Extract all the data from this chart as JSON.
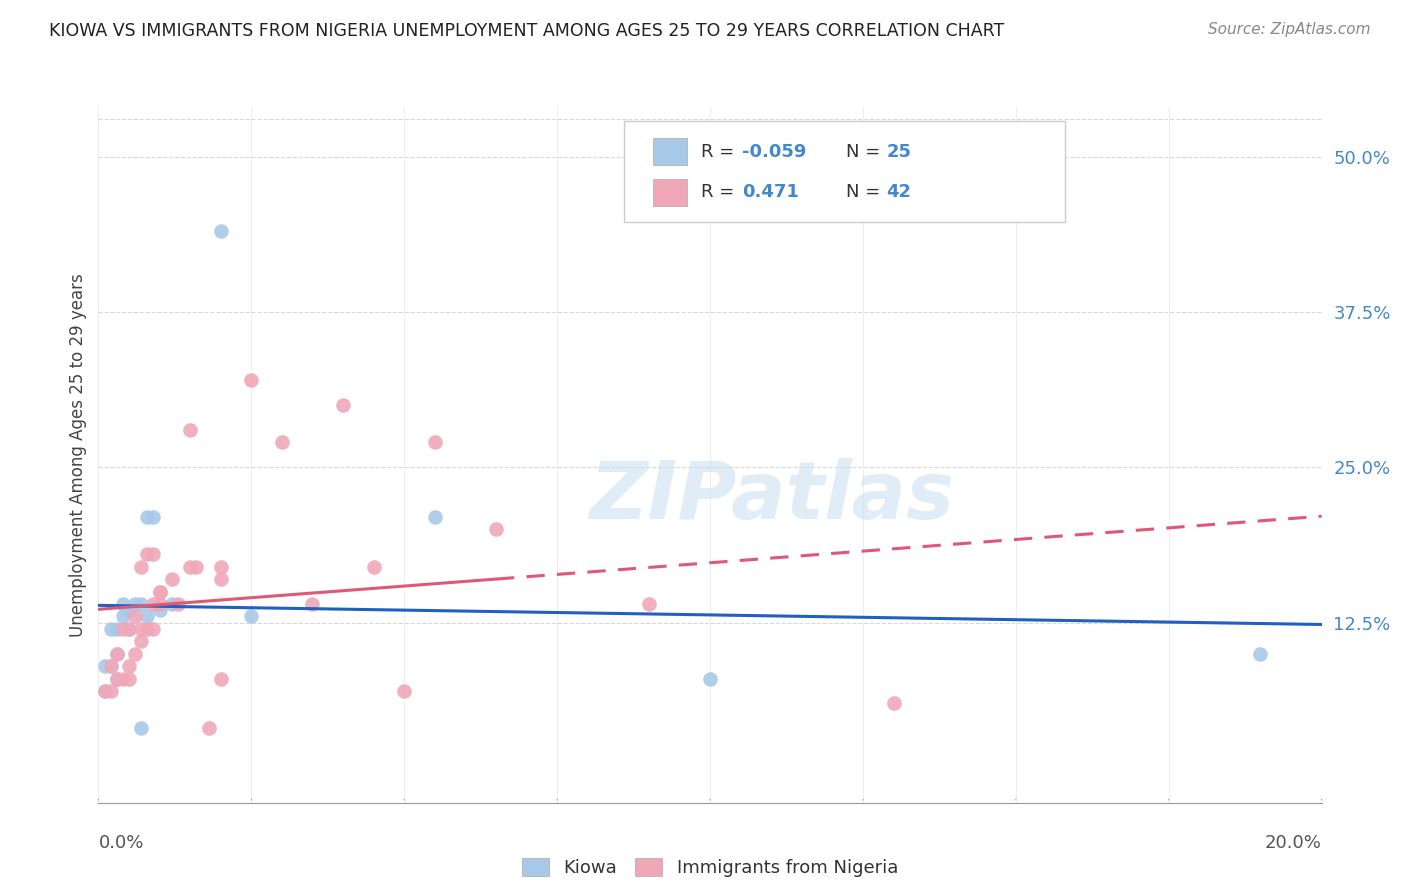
{
  "title": "KIOWA VS IMMIGRANTS FROM NIGERIA UNEMPLOYMENT AMONG AGES 25 TO 29 YEARS CORRELATION CHART",
  "source": "Source: ZipAtlas.com",
  "ylabel": "Unemployment Among Ages 25 to 29 years",
  "xrange": [
    0.0,
    0.2
  ],
  "yrange": [
    -0.02,
    0.54
  ],
  "yticks": [
    0.0,
    0.125,
    0.25,
    0.375,
    0.5
  ],
  "ytick_labels": [
    "",
    "12.5%",
    "25.0%",
    "37.5%",
    "50.0%"
  ],
  "kiowa_R": -0.059,
  "kiowa_N": 25,
  "nigeria_R": 0.471,
  "nigeria_N": 42,
  "kiowa_color": "#a8c8e8",
  "nigeria_color": "#f0a8b8",
  "kiowa_line_color": "#2060c0",
  "nigeria_line_color": "#e05878",
  "legend_label1": "Kiowa",
  "legend_label2": "Immigrants from Nigeria",
  "kiowa_x": [
    0.001,
    0.001,
    0.002,
    0.002,
    0.003,
    0.003,
    0.003,
    0.004,
    0.004,
    0.005,
    0.005,
    0.005,
    0.006,
    0.007,
    0.007,
    0.008,
    0.008,
    0.009,
    0.01,
    0.012,
    0.02,
    0.025,
    0.055,
    0.1,
    0.19
  ],
  "kiowa_y": [
    0.07,
    0.09,
    0.09,
    0.12,
    0.08,
    0.1,
    0.12,
    0.13,
    0.14,
    0.12,
    0.135,
    0.135,
    0.14,
    0.14,
    0.04,
    0.13,
    0.21,
    0.21,
    0.135,
    0.14,
    0.44,
    0.13,
    0.21,
    0.08,
    0.1
  ],
  "nigeria_x": [
    0.001,
    0.002,
    0.002,
    0.003,
    0.003,
    0.004,
    0.004,
    0.005,
    0.005,
    0.005,
    0.006,
    0.006,
    0.007,
    0.007,
    0.007,
    0.008,
    0.008,
    0.009,
    0.009,
    0.009,
    0.01,
    0.01,
    0.01,
    0.012,
    0.013,
    0.015,
    0.015,
    0.016,
    0.018,
    0.02,
    0.02,
    0.02,
    0.025,
    0.03,
    0.035,
    0.04,
    0.045,
    0.05,
    0.055,
    0.065,
    0.09,
    0.13
  ],
  "nigeria_y": [
    0.07,
    0.07,
    0.09,
    0.08,
    0.1,
    0.08,
    0.12,
    0.08,
    0.09,
    0.12,
    0.1,
    0.13,
    0.11,
    0.12,
    0.17,
    0.12,
    0.18,
    0.12,
    0.14,
    0.18,
    0.14,
    0.15,
    0.15,
    0.16,
    0.14,
    0.28,
    0.17,
    0.17,
    0.04,
    0.08,
    0.16,
    0.17,
    0.32,
    0.27,
    0.14,
    0.3,
    0.17,
    0.07,
    0.27,
    0.2,
    0.14,
    0.06
  ],
  "watermark": "ZIPatlas",
  "background_color": "#ffffff",
  "grid_color": "#d8d8d8"
}
